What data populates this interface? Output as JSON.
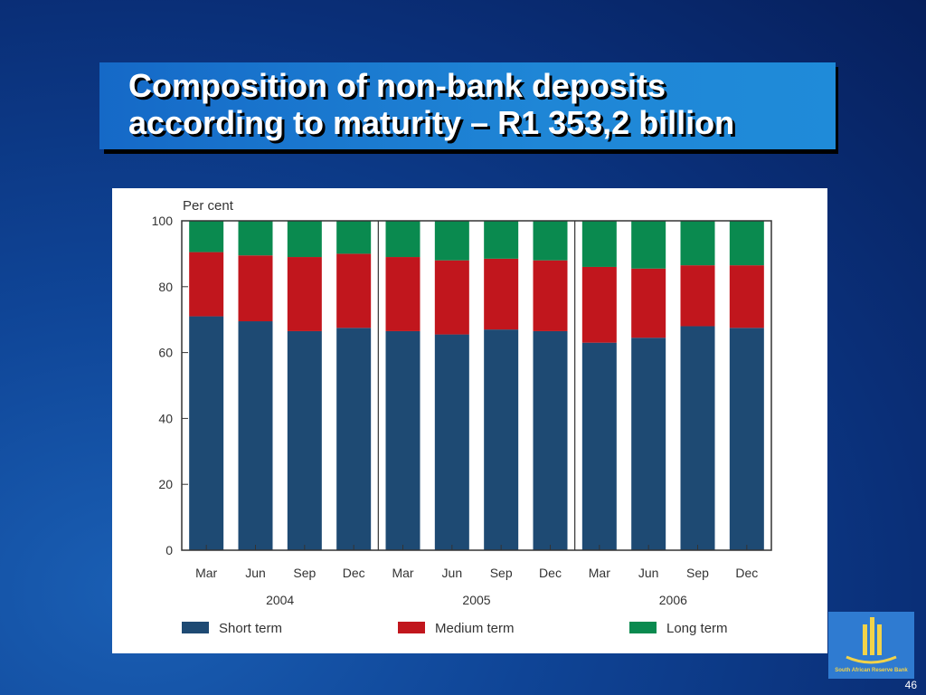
{
  "slide": {
    "title_line1": "Composition of non-bank deposits",
    "title_line2": "according to maturity – R1 353,2 billion",
    "page_number": "46"
  },
  "logo": {
    "text": "South African Reserve Bank"
  },
  "colors": {
    "short_term": "#1e4a73",
    "medium_term": "#c1161d",
    "long_term": "#0a8a4f"
  },
  "chart_data": {
    "type": "bar",
    "stacked": true,
    "ylabel": "Per cent",
    "ylim": [
      0,
      100
    ],
    "yticks": [
      0,
      20,
      40,
      60,
      80,
      100
    ],
    "categories": [
      "Mar",
      "Jun",
      "Sep",
      "Dec",
      "Mar",
      "Jun",
      "Sep",
      "Dec",
      "Mar",
      "Jun",
      "Sep",
      "Dec"
    ],
    "groups": [
      {
        "label": "2004",
        "start": 0,
        "count": 4
      },
      {
        "label": "2005",
        "start": 4,
        "count": 4
      },
      {
        "label": "2006",
        "start": 8,
        "count": 4
      }
    ],
    "series": [
      {
        "name": "Short term",
        "color": "#1e4a73",
        "values": [
          71,
          69.5,
          66.5,
          67.5,
          66.5,
          65.5,
          67,
          66.5,
          63,
          64.5,
          68,
          67.5
        ]
      },
      {
        "name": "Medium term",
        "color": "#c1161d",
        "values": [
          19.5,
          20,
          22.5,
          22.5,
          22.5,
          22.5,
          21.5,
          21.5,
          23,
          21,
          18.5,
          19
        ]
      },
      {
        "name": "Long term",
        "color": "#0a8a4f",
        "values": [
          9.5,
          10.5,
          11,
          10,
          11,
          12,
          11.5,
          12,
          14,
          14.5,
          13.5,
          13.5
        ]
      }
    ],
    "legend_position": "bottom",
    "grid": false
  }
}
